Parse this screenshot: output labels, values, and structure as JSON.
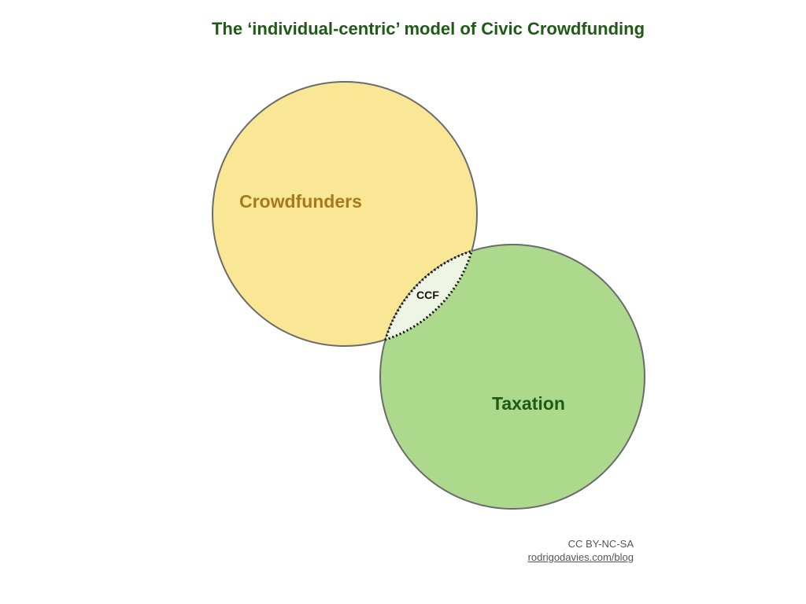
{
  "title": "The ‘individual-centric’ model of Civic Crowdfunding",
  "sets": {
    "crowdfunders": {
      "label": "Crowdfunders",
      "fill": "#f9e795",
      "label_color": "#a7791b"
    },
    "taxation": {
      "label": "Taxation",
      "fill": "#add98d",
      "label_color": "#1f5a17"
    },
    "intersection": {
      "label": "CCF",
      "fill": "#eef5e4"
    }
  },
  "credits": {
    "license": "CC BY-NC-SA",
    "link": "rodrigodavies.com/blog"
  }
}
